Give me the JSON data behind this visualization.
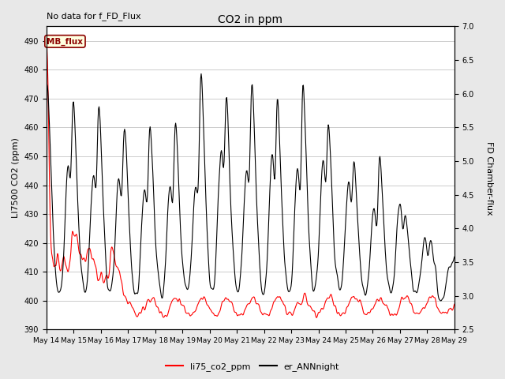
{
  "title": "CO2 in ppm",
  "top_left_text": "No data for f_FD_Flux",
  "ylabel_left": "LI7500 CO2 (ppm)",
  "ylabel_right": "FD Chamber-flux",
  "ylim_left": [
    390,
    495
  ],
  "ylim_right": [
    2.5,
    7.0
  ],
  "yticks_left": [
    390,
    400,
    410,
    420,
    430,
    440,
    450,
    460,
    470,
    480,
    490
  ],
  "yticks_right": [
    2.5,
    3.0,
    3.5,
    4.0,
    4.5,
    5.0,
    5.5,
    6.0,
    6.5,
    7.0
  ],
  "xtick_labels": [
    "May 14",
    "May 15",
    "May 16",
    "May 17",
    "May 18",
    "May 19",
    "May 20",
    "May 21",
    "May 22",
    "May 23",
    "May 24",
    "May 25",
    "May 26",
    "May 27",
    "May 28",
    "May 29"
  ],
  "annotation_box": "MB_flux",
  "legend_labels": [
    "li75_co2_ppm",
    "er_ANNnight"
  ],
  "legend_colors": [
    "red",
    "black"
  ],
  "background_color": "#e8e8e8",
  "plot_bg_color": "#ffffff",
  "grid_color": "#cccccc",
  "red_line_color": "#ff0000",
  "black_line_color": "#000000",
  "n_days": 16,
  "n_pts": 768
}
